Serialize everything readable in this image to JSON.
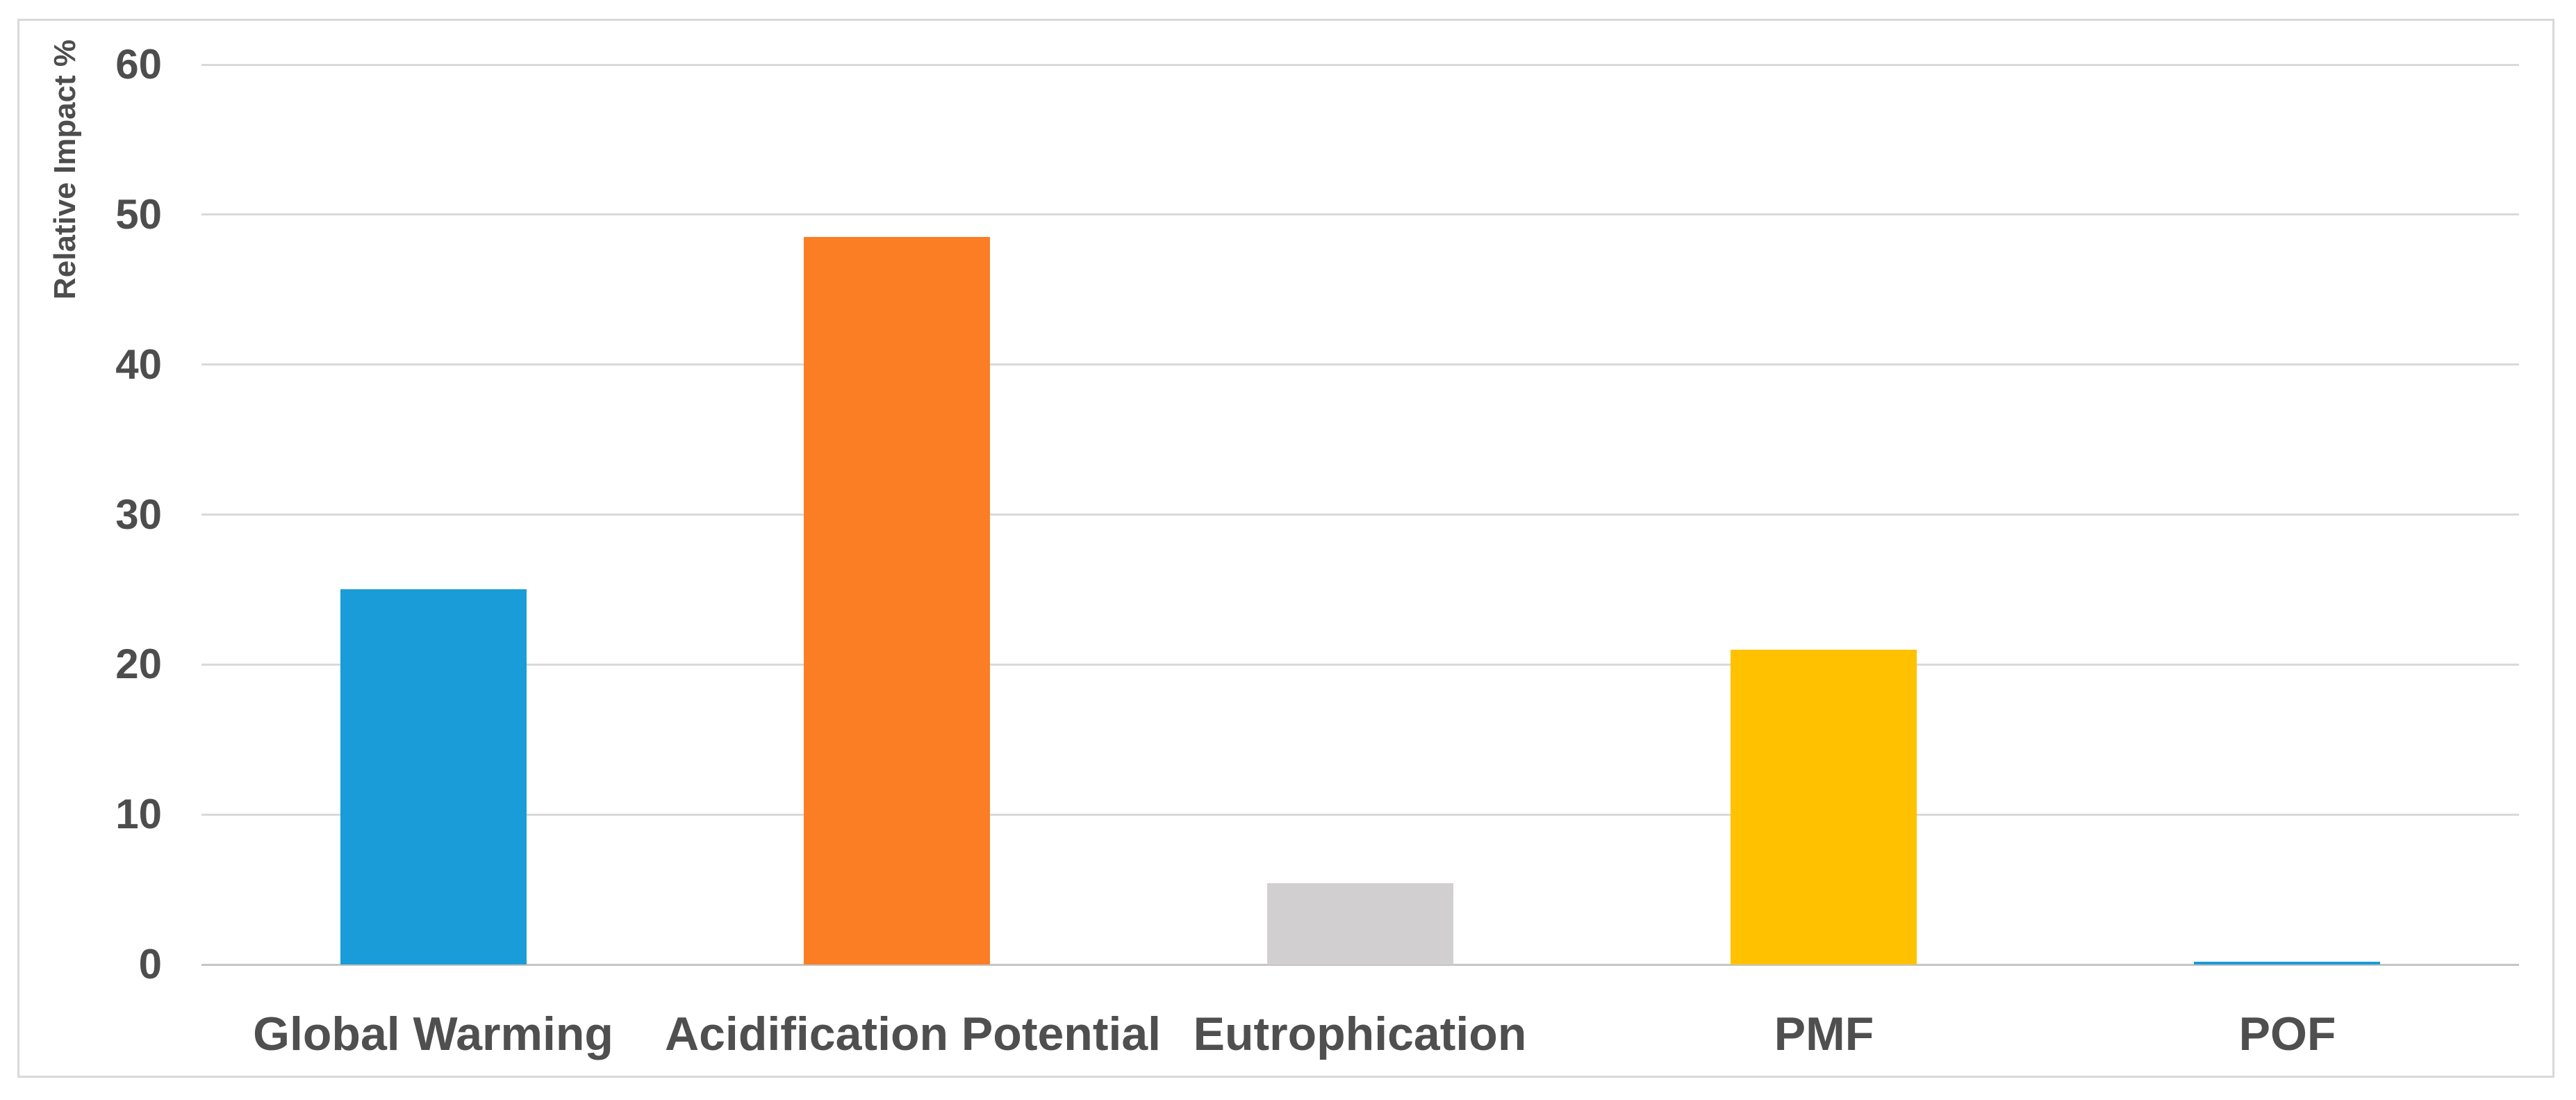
{
  "chart_data": {
    "type": "bar",
    "title": "",
    "xlabel": "",
    "ylabel": "Relative Impact %",
    "categories": [
      "Global Warming",
      "Acidification Potential",
      "Eutrophication",
      "PMF",
      "POF"
    ],
    "values": [
      25,
      48.5,
      5.4,
      21,
      0.2
    ],
    "bar_colors": [
      "#199cd8",
      "#fb7d24",
      "#d2cfd0",
      "#ffc100",
      "#199cd8"
    ],
    "ylim": [
      0,
      60
    ],
    "yticks": [
      0,
      10,
      20,
      30,
      40,
      50,
      60
    ],
    "grid": true,
    "legend": "none"
  },
  "colors": {
    "background": "#ffffff",
    "frame_border": "#d9d9d9",
    "gridline": "#d9d9d9",
    "axis_line": "#c6c4c4",
    "text": "#4d4d4d"
  }
}
